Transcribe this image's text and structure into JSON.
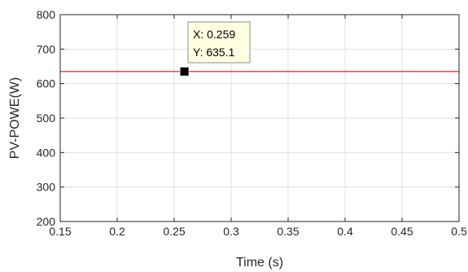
{
  "chart_data": {
    "type": "line",
    "xlabel": "Time (s)",
    "ylabel": "PV-POWE(W)",
    "xlim": [
      0.15,
      0.5
    ],
    "ylim": [
      200,
      800
    ],
    "xticks": [
      0.15,
      0.2,
      0.25,
      0.3,
      0.35,
      0.4,
      0.45,
      0.5
    ],
    "xtick_labels": [
      "0.15",
      "0.2",
      "0.25",
      "0.3",
      "0.35",
      "0.4",
      "0.45",
      "0.5"
    ],
    "yticks": [
      200,
      300,
      400,
      500,
      600,
      700,
      800
    ],
    "ytick_labels": [
      "200",
      "300",
      "400",
      "500",
      "600",
      "700",
      "800"
    ],
    "grid": true,
    "series": [
      {
        "color": "#ff0000",
        "x": [
          0.15,
          0.2,
          0.25,
          0.3,
          0.35,
          0.4,
          0.45,
          0.5
        ],
        "y": [
          635,
          635,
          635,
          635,
          635,
          635,
          635,
          635
        ]
      }
    ],
    "datatip": {
      "x": 0.259,
      "y": 635.1,
      "x_text": "X: 0.259",
      "y_text": "Y: 635.1"
    }
  }
}
